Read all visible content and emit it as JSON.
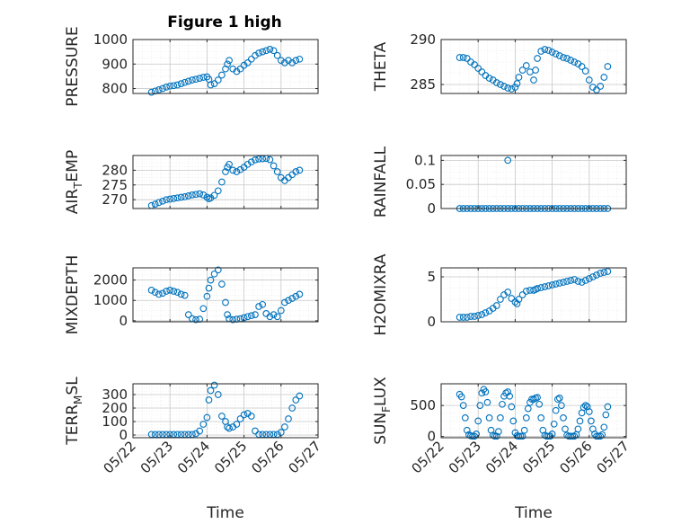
{
  "figure": {
    "title": "Figure 1 high",
    "marker_color": "#0072BD",
    "grid_color": "#c8c8c8",
    "axis_color": "#262626"
  },
  "x_axis": {
    "label": "Time",
    "ticks": [
      "05/22",
      "05/23",
      "05/24",
      "05/25",
      "05/26",
      "05/27"
    ],
    "tick_values": [
      22,
      23,
      24,
      25,
      26,
      27
    ],
    "range": [
      22,
      27
    ]
  },
  "chart_data": [
    {
      "type": "scatter",
      "ylabel": "PRESSURE",
      "ylim": [
        780,
        1000
      ],
      "yticks": [
        800,
        900,
        1000
      ],
      "yticklabels": [
        "800",
        "900",
        "1000"
      ],
      "x": [
        22.5,
        22.6,
        22.7,
        22.8,
        22.9,
        23.0,
        23.1,
        23.2,
        23.3,
        23.4,
        23.5,
        23.6,
        23.7,
        23.8,
        23.9,
        24.0,
        24.05,
        24.1,
        24.2,
        24.3,
        24.4,
        24.5,
        24.55,
        24.6,
        24.7,
        24.8,
        24.9,
        25.0,
        25.1,
        25.2,
        25.3,
        25.4,
        25.5,
        25.6,
        25.7,
        25.8,
        25.9,
        26.0,
        26.1,
        26.2,
        26.3,
        26.4,
        26.5
      ],
      "y": [
        785,
        790,
        795,
        800,
        806,
        810,
        812,
        815,
        820,
        825,
        830,
        835,
        838,
        842,
        846,
        848,
        838,
        815,
        820,
        835,
        855,
        880,
        900,
        915,
        880,
        870,
        880,
        895,
        905,
        920,
        935,
        945,
        950,
        955,
        960,
        955,
        935,
        915,
        905,
        915,
        905,
        915,
        920
      ]
    },
    {
      "type": "scatter",
      "ylabel": "THETA",
      "ylim": [
        284,
        290
      ],
      "yticks": [
        285,
        290
      ],
      "yticklabels": [
        "285",
        "290"
      ],
      "x": [
        22.5,
        22.6,
        22.7,
        22.8,
        22.9,
        23.0,
        23.1,
        23.2,
        23.3,
        23.4,
        23.5,
        23.6,
        23.7,
        23.8,
        23.9,
        24.0,
        24.05,
        24.1,
        24.2,
        24.3,
        24.4,
        24.5,
        24.55,
        24.6,
        24.7,
        24.8,
        24.9,
        25.0,
        25.1,
        25.2,
        25.3,
        25.4,
        25.5,
        25.6,
        25.7,
        25.8,
        25.9,
        26.0,
        26.1,
        26.2,
        26.3,
        26.4,
        26.5
      ],
      "y": [
        288.0,
        288.0,
        287.9,
        287.5,
        287.2,
        286.8,
        286.4,
        286.0,
        285.7,
        285.5,
        285.2,
        285.0,
        284.8,
        284.6,
        284.5,
        284.7,
        285.1,
        285.8,
        286.6,
        287.1,
        286.4,
        285.5,
        286.6,
        287.9,
        288.7,
        288.9,
        288.8,
        288.6,
        288.4,
        288.2,
        288.0,
        287.9,
        287.7,
        287.5,
        287.3,
        287.0,
        286.5,
        285.5,
        284.7,
        284.4,
        284.8,
        285.8,
        287.0
      ]
    },
    {
      "type": "scatter",
      "ylabel": "AIR_TEMP",
      "ylim": [
        267,
        285
      ],
      "yticks": [
        270,
        275,
        280
      ],
      "yticklabels": [
        "270",
        "275",
        "280"
      ],
      "x": [
        22.5,
        22.6,
        22.7,
        22.8,
        22.9,
        23.0,
        23.1,
        23.2,
        23.3,
        23.4,
        23.5,
        23.6,
        23.7,
        23.8,
        23.9,
        24.0,
        24.05,
        24.1,
        24.2,
        24.3,
        24.4,
        24.5,
        24.55,
        24.6,
        24.7,
        24.8,
        24.9,
        25.0,
        25.1,
        25.2,
        25.3,
        25.4,
        25.5,
        25.6,
        25.7,
        25.8,
        25.9,
        26.0,
        26.1,
        26.2,
        26.3,
        26.4,
        26.5
      ],
      "y": [
        268.0,
        268.5,
        269.0,
        269.5,
        270.0,
        270.2,
        270.4,
        270.6,
        270.8,
        271.0,
        271.3,
        271.6,
        271.8,
        272.0,
        271.6,
        270.8,
        270.3,
        270.6,
        271.5,
        273.0,
        276.0,
        279.5,
        281.0,
        282.0,
        280.0,
        279.5,
        280.2,
        281.0,
        282.0,
        282.8,
        283.5,
        283.8,
        283.9,
        284.0,
        283.6,
        281.5,
        279.5,
        277.5,
        276.5,
        277.5,
        278.5,
        279.5,
        280.0
      ]
    },
    {
      "type": "scatter",
      "ylabel": "RAINFALL",
      "ylim": [
        0,
        0.11
      ],
      "yticks": [
        0,
        0.05,
        0.1
      ],
      "yticklabels": [
        "0",
        "0.05",
        "0.1"
      ],
      "x": [
        22.5,
        22.6,
        22.7,
        22.8,
        22.9,
        23.0,
        23.1,
        23.2,
        23.3,
        23.4,
        23.5,
        23.6,
        23.7,
        23.8,
        23.9,
        24.0,
        24.1,
        24.2,
        24.3,
        24.4,
        24.5,
        24.6,
        24.7,
        24.8,
        24.9,
        25.0,
        25.1,
        25.2,
        25.3,
        25.4,
        25.5,
        25.6,
        25.7,
        25.8,
        25.9,
        26.0,
        26.1,
        26.2,
        26.3,
        26.4,
        26.5,
        23.8
      ],
      "y": [
        0,
        0,
        0,
        0,
        0,
        0,
        0,
        0,
        0,
        0,
        0,
        0,
        0,
        0,
        0,
        0,
        0,
        0,
        0,
        0,
        0,
        0,
        0,
        0,
        0,
        0,
        0,
        0,
        0,
        0,
        0,
        0,
        0,
        0,
        0,
        0,
        0,
        0,
        0,
        0,
        0,
        0.1
      ]
    },
    {
      "type": "scatter",
      "ylabel": "MIXDEPTH",
      "ylim": [
        -50,
        2600
      ],
      "yticks": [
        0,
        1000,
        2000
      ],
      "yticklabels": [
        "0",
        "1000",
        "2000"
      ],
      "x": [
        22.5,
        22.6,
        22.7,
        22.8,
        22.9,
        23.0,
        23.1,
        23.2,
        23.3,
        23.4,
        23.5,
        23.6,
        23.7,
        23.8,
        23.9,
        24.0,
        24.05,
        24.1,
        24.2,
        24.3,
        24.4,
        24.5,
        24.55,
        24.6,
        24.7,
        24.8,
        24.9,
        25.0,
        25.1,
        25.2,
        25.3,
        25.4,
        25.5,
        25.6,
        25.7,
        25.8,
        25.9,
        26.0,
        26.1,
        26.2,
        26.3,
        26.4,
        26.5
      ],
      "y": [
        1500,
        1400,
        1300,
        1350,
        1450,
        1500,
        1450,
        1400,
        1300,
        1250,
        300,
        100,
        50,
        80,
        600,
        1200,
        1600,
        2000,
        2300,
        2500,
        1800,
        900,
        300,
        100,
        50,
        80,
        100,
        150,
        200,
        250,
        300,
        700,
        800,
        350,
        200,
        300,
        200,
        500,
        900,
        1000,
        1100,
        1200,
        1300
      ]
    },
    {
      "type": "scatter",
      "ylabel": "H2OMIXRA",
      "ylim": [
        0,
        6
      ],
      "yticks": [
        0,
        5
      ],
      "yticklabels": [
        "0",
        "5"
      ],
      "x": [
        22.5,
        22.6,
        22.7,
        22.8,
        22.9,
        23.0,
        23.1,
        23.2,
        23.3,
        23.4,
        23.5,
        23.6,
        23.7,
        23.8,
        23.9,
        24.0,
        24.05,
        24.1,
        24.2,
        24.3,
        24.4,
        24.5,
        24.55,
        24.6,
        24.7,
        24.8,
        24.9,
        25.0,
        25.1,
        25.2,
        25.3,
        25.4,
        25.5,
        25.6,
        25.7,
        25.8,
        25.9,
        26.0,
        26.1,
        26.2,
        26.3,
        26.4,
        26.5
      ],
      "y": [
        0.5,
        0.5,
        0.5,
        0.6,
        0.6,
        0.7,
        0.8,
        1.0,
        1.2,
        1.5,
        1.8,
        2.5,
        3.0,
        3.3,
        2.6,
        2.2,
        2.0,
        2.5,
        3.0,
        3.4,
        3.5,
        3.5,
        3.6,
        3.7,
        3.8,
        3.9,
        4.0,
        4.1,
        4.2,
        4.3,
        4.4,
        4.5,
        4.6,
        4.7,
        4.5,
        4.4,
        4.6,
        4.8,
        5.0,
        5.2,
        5.4,
        5.5,
        5.6
      ]
    },
    {
      "type": "scatter",
      "ylabel": "TERR_MSL",
      "ylim": [
        -20,
        380
      ],
      "yticks": [
        0,
        100,
        200,
        300
      ],
      "yticklabels": [
        "0",
        "100",
        "200",
        "300"
      ],
      "x": [
        22.5,
        22.6,
        22.7,
        22.8,
        22.9,
        23.0,
        23.1,
        23.2,
        23.3,
        23.4,
        23.5,
        23.6,
        23.7,
        23.8,
        23.9,
        24.0,
        24.05,
        24.1,
        24.2,
        24.3,
        24.4,
        24.5,
        24.55,
        24.6,
        24.7,
        24.8,
        24.9,
        25.0,
        25.1,
        25.2,
        25.3,
        25.4,
        25.5,
        25.6,
        25.7,
        25.8,
        25.9,
        26.0,
        26.1,
        26.2,
        26.3,
        26.4,
        26.5
      ],
      "y": [
        5,
        5,
        5,
        5,
        5,
        5,
        5,
        5,
        5,
        5,
        5,
        5,
        10,
        30,
        80,
        130,
        260,
        330,
        370,
        300,
        140,
        100,
        60,
        50,
        60,
        80,
        120,
        150,
        160,
        140,
        30,
        5,
        5,
        5,
        5,
        5,
        5,
        20,
        60,
        120,
        200,
        260,
        290
      ]
    },
    {
      "type": "scatter",
      "ylabel": "SUN_FLUX",
      "ylim": [
        -20,
        850
      ],
      "yticks": [
        0,
        500
      ],
      "yticklabels": [
        "0",
        "500"
      ],
      "x": [
        22.5,
        22.55,
        22.6,
        22.65,
        22.7,
        22.75,
        22.8,
        22.85,
        22.9,
        22.95,
        23.0,
        23.05,
        23.1,
        23.15,
        23.2,
        23.25,
        23.3,
        23.35,
        23.4,
        23.45,
        23.5,
        23.55,
        23.6,
        23.65,
        23.7,
        23.75,
        23.8,
        23.85,
        23.9,
        23.95,
        24.0,
        24.05,
        24.1,
        24.15,
        24.2,
        24.25,
        24.3,
        24.35,
        24.4,
        24.45,
        24.5,
        24.55,
        24.6,
        24.65,
        24.7,
        24.75,
        24.8,
        24.85,
        24.9,
        24.95,
        25.0,
        25.05,
        25.1,
        25.15,
        25.2,
        25.25,
        25.3,
        25.35,
        25.4,
        25.45,
        25.5,
        25.55,
        25.6,
        25.65,
        25.7,
        25.75,
        25.8,
        25.85,
        25.9,
        25.95,
        26.0,
        26.05,
        26.1,
        26.15,
        26.2,
        26.25,
        26.3,
        26.35,
        26.4,
        26.45,
        26.5
      ],
      "y": [
        680,
        640,
        500,
        300,
        100,
        30,
        10,
        5,
        5,
        40,
        250,
        500,
        700,
        760,
        720,
        550,
        300,
        100,
        20,
        5,
        5,
        80,
        300,
        520,
        650,
        700,
        720,
        650,
        480,
        250,
        60,
        10,
        5,
        5,
        5,
        100,
        300,
        450,
        550,
        600,
        600,
        620,
        630,
        520,
        300,
        100,
        20,
        5,
        5,
        5,
        40,
        200,
        420,
        600,
        620,
        500,
        300,
        120,
        20,
        5,
        5,
        5,
        5,
        30,
        120,
        250,
        380,
        470,
        500,
        480,
        400,
        250,
        120,
        40,
        5,
        5,
        5,
        30,
        150,
        350,
        480
      ]
    }
  ]
}
